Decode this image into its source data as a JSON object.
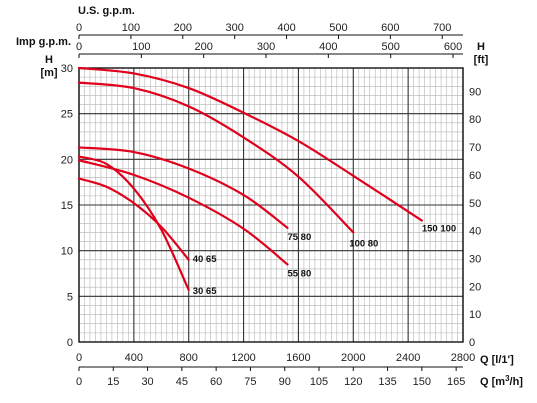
{
  "chart_data": {
    "type": "line",
    "title": "",
    "grid": true,
    "axes": {
      "x_bottom_primary": {
        "label": "Q [l/1']",
        "unit": "l/min",
        "range": [
          0,
          2800
        ],
        "ticks": [
          0,
          400,
          800,
          1200,
          1600,
          2000,
          2400,
          2800
        ]
      },
      "x_bottom_secondary": {
        "label": "Q [m3/h]",
        "label_main": "Q [m",
        "label_sup": "3",
        "label_end": "/h]",
        "range": [
          0,
          168
        ],
        "ticks": [
          0,
          15,
          30,
          45,
          60,
          75,
          90,
          105,
          120,
          135,
          150,
          165
        ]
      },
      "x_top_us": {
        "label": "U.S. g.p.m.",
        "range": [
          0,
          740
        ],
        "ticks": [
          0,
          100,
          200,
          300,
          400,
          500,
          600,
          700
        ]
      },
      "x_top_imp": {
        "label": "Imp g.p.m.",
        "range": [
          0,
          616
        ],
        "ticks": [
          0,
          100,
          200,
          300,
          400,
          500,
          600
        ]
      },
      "y_left": {
        "label_top": "H",
        "label_bottom": "[m]",
        "range": [
          0,
          30
        ],
        "ticks": [
          0,
          5,
          10,
          15,
          20,
          25,
          30
        ]
      },
      "y_right": {
        "label_top": "H",
        "label_bottom": "[ft]",
        "range": [
          0,
          98.4
        ],
        "ticks": [
          0,
          10,
          20,
          30,
          40,
          50,
          60,
          70,
          80,
          90
        ]
      }
    },
    "series": [
      {
        "name": "30 65",
        "color": "#e0001b",
        "points": [
          [
            0,
            20.3
          ],
          [
            200,
            19.5
          ],
          [
            400,
            16.8
          ],
          [
            600,
            12.3
          ],
          [
            800,
            5.7
          ]
        ]
      },
      {
        "name": "40 65",
        "color": "#e0001b",
        "points": [
          [
            0,
            17.9
          ],
          [
            200,
            17.0
          ],
          [
            400,
            15.2
          ],
          [
            600,
            12.6
          ],
          [
            800,
            9.0
          ]
        ]
      },
      {
        "name": "55 80",
        "color": "#e0001b",
        "points": [
          [
            0,
            19.9
          ],
          [
            400,
            18.3
          ],
          [
            800,
            15.8
          ],
          [
            1200,
            12.4
          ],
          [
            1520,
            8.5
          ]
        ]
      },
      {
        "name": "75 80",
        "color": "#e0001b",
        "points": [
          [
            0,
            21.3
          ],
          [
            400,
            20.8
          ],
          [
            800,
            19.0
          ],
          [
            1200,
            16.1
          ],
          [
            1520,
            12.5
          ]
        ]
      },
      {
        "name": "100 80",
        "color": "#e0001b",
        "points": [
          [
            0,
            28.4
          ],
          [
            400,
            27.8
          ],
          [
            800,
            25.8
          ],
          [
            1200,
            22.4
          ],
          [
            1600,
            18.1
          ],
          [
            2000,
            12.0
          ]
        ]
      },
      {
        "name": "150 100",
        "color": "#e0001b",
        "points": [
          [
            0,
            30.0
          ],
          [
            400,
            29.4
          ],
          [
            800,
            27.8
          ],
          [
            1200,
            25.1
          ],
          [
            1600,
            22.0
          ],
          [
            2000,
            18.2
          ],
          [
            2500,
            13.3
          ]
        ]
      }
    ]
  }
}
